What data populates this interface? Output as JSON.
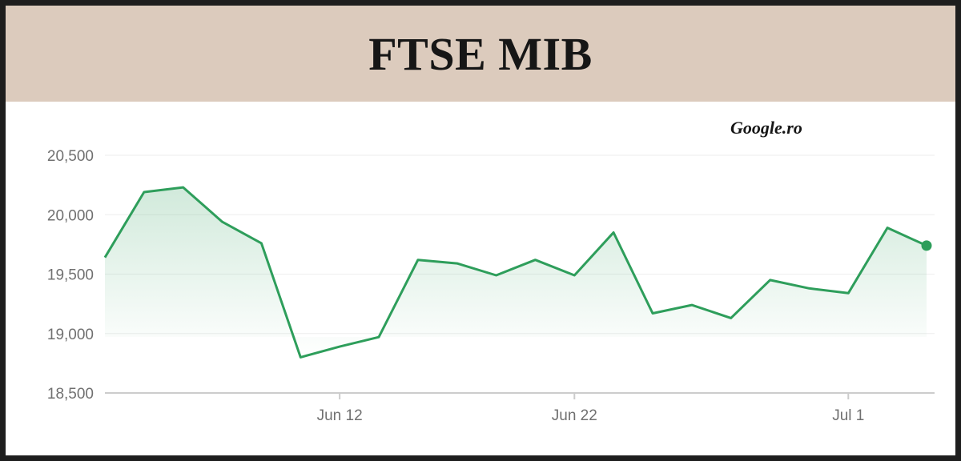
{
  "header": {
    "title": "FTSE MIB"
  },
  "source_label": "Google.ro",
  "colors": {
    "line": "#2e9e5b",
    "header_bg": "#dccbbd",
    "grid": "#eeeeee",
    "axis": "#cccccc",
    "tick_text": "#707070"
  },
  "chart_data": {
    "type": "area",
    "title": "FTSE MIB",
    "xlabel": "",
    "ylabel": "",
    "ylim": [
      18500,
      20500
    ],
    "yticks": [
      18500,
      19000,
      19500,
      20000,
      20500
    ],
    "ytick_labels": [
      "18,500",
      "19,000",
      "19,500",
      "20,000",
      "20,500"
    ],
    "xticks": [
      {
        "label": "Jun 12",
        "index": 6
      },
      {
        "label": "Jun 22",
        "index": 12
      },
      {
        "label": "Jul 1",
        "index": 19
      }
    ],
    "grid": true,
    "legend": "none",
    "series": [
      {
        "values": [
          19640,
          20190,
          20230,
          19940,
          19760,
          18800,
          18890,
          18970,
          19620,
          19590,
          19490,
          19620,
          19490,
          19850,
          19170,
          19240,
          19130,
          19450,
          19380,
          19340,
          19890,
          19740
        ]
      }
    ]
  }
}
